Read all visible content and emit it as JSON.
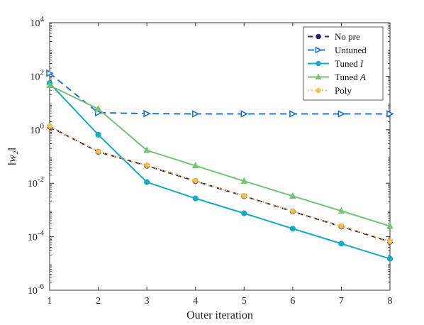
{
  "chart_data": {
    "type": "line",
    "title": "",
    "xlabel": "Outer iteration",
    "ylabel": "‖w₂‖",
    "xlim": [
      1,
      8
    ],
    "ylim": [
      1e-06,
      10000.0
    ],
    "yscale": "log",
    "grid": false,
    "legend_position": "top-right",
    "x_ticks": [
      1,
      2,
      3,
      4,
      5,
      6,
      7,
      8
    ],
    "y_ticks": [
      {
        "value": 1e-06,
        "base": "10",
        "exp": "-6"
      },
      {
        "value": 0.0001,
        "base": "10",
        "exp": "-4"
      },
      {
        "value": 0.01,
        "base": "10",
        "exp": "-2"
      },
      {
        "value": 1.0,
        "base": "10",
        "exp": "0"
      },
      {
        "value": 100.0,
        "base": "10",
        "exp": "2"
      },
      {
        "value": 10000.0,
        "base": "10",
        "exp": "4"
      }
    ],
    "x": [
      1,
      2,
      3,
      4,
      5,
      6,
      7,
      8
    ],
    "series": [
      {
        "name": "No pre",
        "legend_main": "No pre",
        "legend_italic": "",
        "color": "#2e1f6e",
        "dash": "7,5",
        "marker": "circle",
        "values": [
          1.3,
          0.15,
          0.045,
          0.012,
          0.0033,
          0.00088,
          0.00024,
          6.5e-05
        ]
      },
      {
        "name": "Untuned",
        "legend_main": "Untuned",
        "legend_italic": "",
        "color": "#1f74d6",
        "dash": "9,6",
        "marker": "triangle-right",
        "values": [
          130,
          4.3,
          4.0,
          3.9,
          3.9,
          3.9,
          3.9,
          3.9
        ]
      },
      {
        "name": "Tuned I",
        "legend_main": "Tuned ",
        "legend_italic": "I",
        "color": "#17aac4",
        "dash": "",
        "marker": "circle",
        "values": [
          55,
          0.65,
          0.011,
          0.0027,
          0.00075,
          0.0002,
          5.5e-05,
          1.5e-05
        ]
      },
      {
        "name": "Tuned A",
        "legend_main": "Tuned ",
        "legend_italic": "A",
        "color": "#74c476",
        "dash": "",
        "marker": "triangle-up",
        "values": [
          45,
          6.0,
          0.17,
          0.045,
          0.012,
          0.0033,
          0.00092,
          0.00025
        ]
      },
      {
        "name": "Poly",
        "legend_main": "Poly",
        "legend_italic": "",
        "color": "#f2c14e",
        "dash": "2,3",
        "marker": "star",
        "values": [
          1.35,
          0.155,
          0.047,
          0.0125,
          0.0034,
          0.0009,
          0.00025,
          6.7e-05
        ]
      }
    ]
  }
}
